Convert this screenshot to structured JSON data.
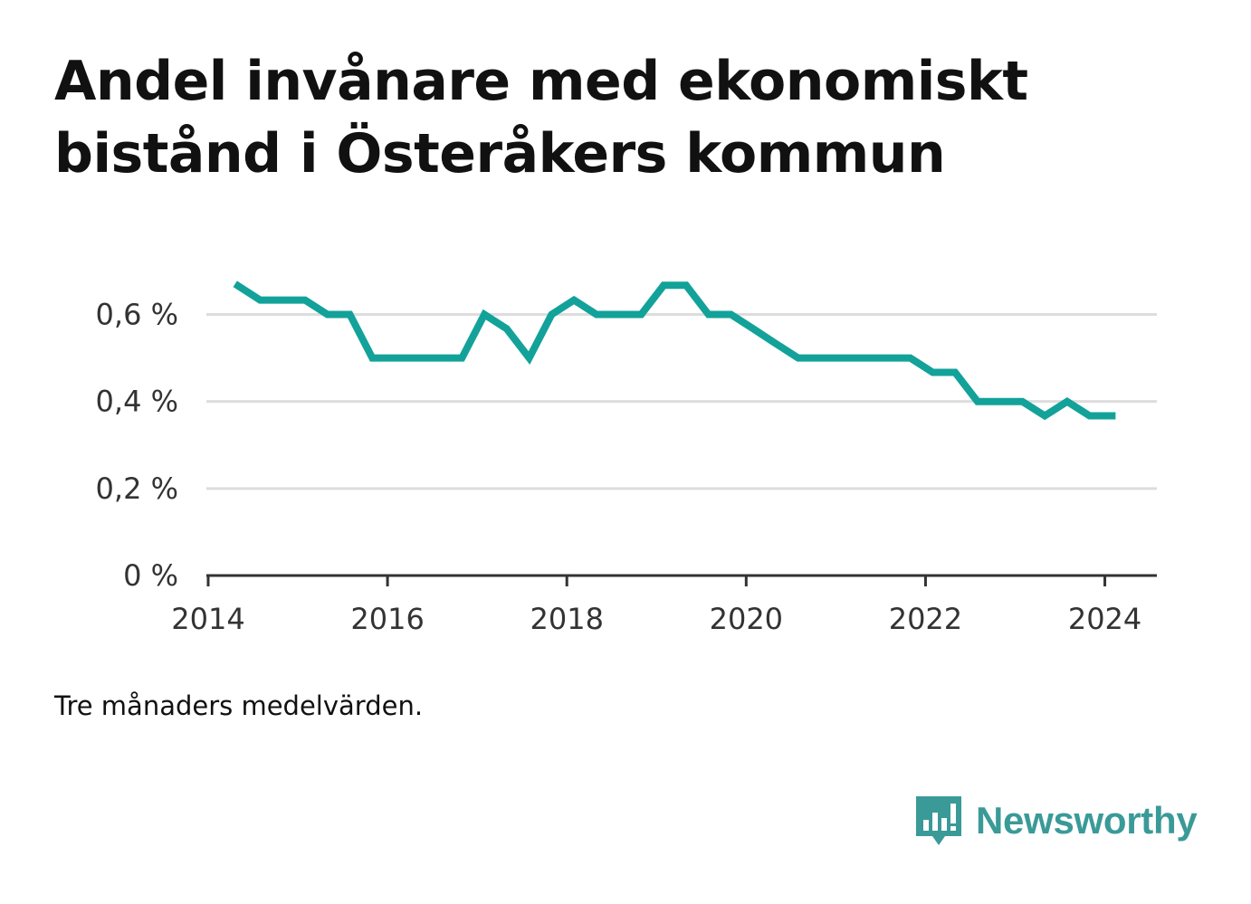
{
  "title": "Andel invånare med ekonomiskt bistånd i Österåkers kommun",
  "note": "Tre månaders medelvärden.",
  "brand": {
    "name": "Newsworthy",
    "icon": "bar-chart-speech-bubble-icon",
    "color": "#3a9a98"
  },
  "colors": {
    "line": "#12a29a",
    "grid": "#dddddd",
    "axis": "#333333"
  },
  "chart_data": {
    "type": "line",
    "title": "Andel invånare med ekonomiskt bistånd i Österåkers kommun",
    "xlabel": "",
    "ylabel": "",
    "xlim": [
      2013.98,
      2024.58
    ],
    "ylim": [
      0,
      0.73
    ],
    "x_ticks": [
      2014,
      2016,
      2018,
      2020,
      2022,
      2024
    ],
    "x_tick_labels": [
      "2014",
      "2016",
      "2018",
      "2020",
      "2022",
      "2024"
    ],
    "y_ticks": [
      0,
      0.2,
      0.4,
      0.6
    ],
    "y_tick_labels": [
      "0 %",
      "0,2 %",
      "0,4 %",
      "0,6 %"
    ],
    "grid": true,
    "series": [
      {
        "color": "#12a29a",
        "x": [
          2014.3,
          2014.58,
          2014.83,
          2015.08,
          2015.33,
          2015.58,
          2015.83,
          2016.08,
          2016.33,
          2016.58,
          2016.83,
          2017.08,
          2017.33,
          2017.58,
          2017.83,
          2018.08,
          2018.33,
          2018.58,
          2018.83,
          2019.08,
          2019.33,
          2019.58,
          2019.83,
          2020.08,
          2020.33,
          2020.58,
          2020.83,
          2021.08,
          2021.33,
          2021.58,
          2021.83,
          2022.08,
          2022.33,
          2022.58,
          2022.83,
          2023.08,
          2023.33,
          2023.58,
          2023.83,
          2024.12
        ],
        "values": [
          0.67,
          0.633,
          0.633,
          0.633,
          0.6,
          0.6,
          0.5,
          0.5,
          0.5,
          0.5,
          0.5,
          0.6,
          0.567,
          0.5,
          0.6,
          0.633,
          0.6,
          0.6,
          0.6,
          0.667,
          0.667,
          0.6,
          0.6,
          0.567,
          0.533,
          0.5,
          0.5,
          0.5,
          0.5,
          0.5,
          0.5,
          0.467,
          0.467,
          0.4,
          0.4,
          0.4,
          0.367,
          0.4,
          0.367,
          0.367
        ]
      }
    ]
  }
}
